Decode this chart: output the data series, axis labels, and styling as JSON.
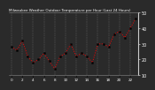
{
  "title": "Milwaukee Weather Outdoor Temperature per Hour (Last 24 Hours)",
  "x_values": [
    0,
    1,
    2,
    3,
    4,
    5,
    6,
    7,
    8,
    9,
    10,
    11,
    12,
    13,
    14,
    15,
    16,
    17,
    18,
    19,
    20,
    21,
    22,
    23
  ],
  "y_values": [
    28,
    26,
    32,
    22,
    18,
    20,
    24,
    19,
    14,
    22,
    24,
    30,
    22,
    24,
    22,
    18,
    30,
    30,
    28,
    36,
    38,
    34,
    40,
    46
  ],
  "y_min": 10,
  "y_max": 50,
  "line_color": "#ff0000",
  "marker_color": "#000000",
  "bg_color": "#2a2a2a",
  "plot_bg": "#2a2a2a",
  "grid_color": "#888888",
  "title_color": "#ffffff",
  "tick_label_color": "#ffffff",
  "y_ticks": [
    10,
    20,
    30,
    40,
    50
  ],
  "x_tick_positions": [
    0,
    2,
    4,
    6,
    8,
    10,
    12,
    14,
    16,
    18,
    20,
    22
  ],
  "x_tick_labels": [
    "0",
    "2",
    "4",
    "6",
    "8",
    "10",
    "12",
    "14",
    "16",
    "18",
    "20",
    "22"
  ]
}
